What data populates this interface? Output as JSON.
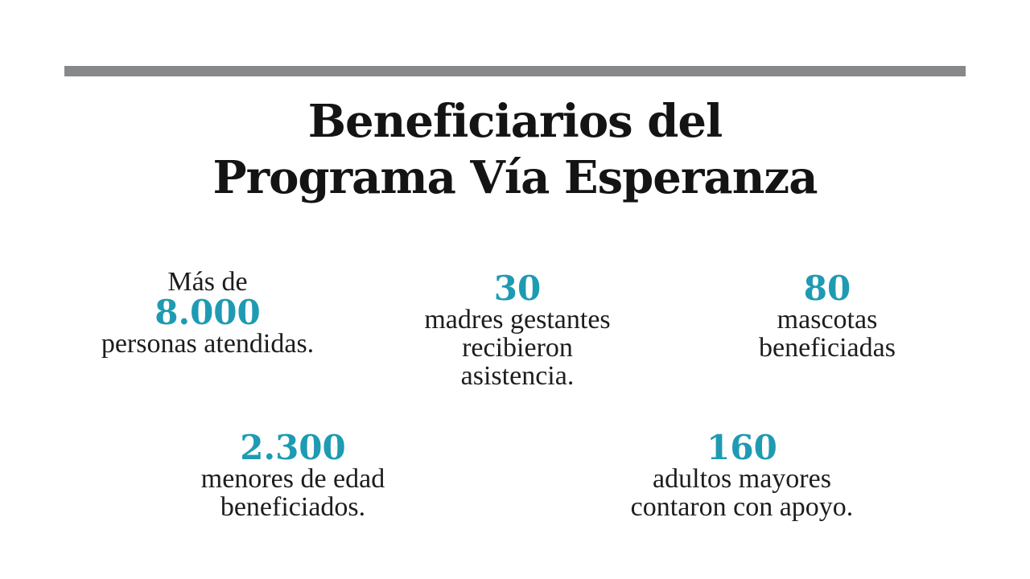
{
  "title": {
    "line1": "Beneficiarios del",
    "line2": "Programa Vía Esperanza"
  },
  "colors": {
    "accent": "#1e9bb3",
    "bar": "#87888a",
    "text": "#1a1a1a"
  },
  "stats": {
    "personas": {
      "prefix": "Más de",
      "number": "8.000",
      "line1": "personas atendidas."
    },
    "madres": {
      "number": "30",
      "line1": "madres gestantes",
      "line2": "recibieron",
      "line3": "asistencia."
    },
    "mascotas": {
      "number": "80",
      "line1": "mascotas",
      "line2": "beneficiadas"
    },
    "menores": {
      "number": "2.300",
      "line1": "menores de edad",
      "line2": "beneficiados."
    },
    "adultos": {
      "number": "160",
      "line1": "adultos mayores",
      "line2": "contaron con apoyo."
    }
  }
}
